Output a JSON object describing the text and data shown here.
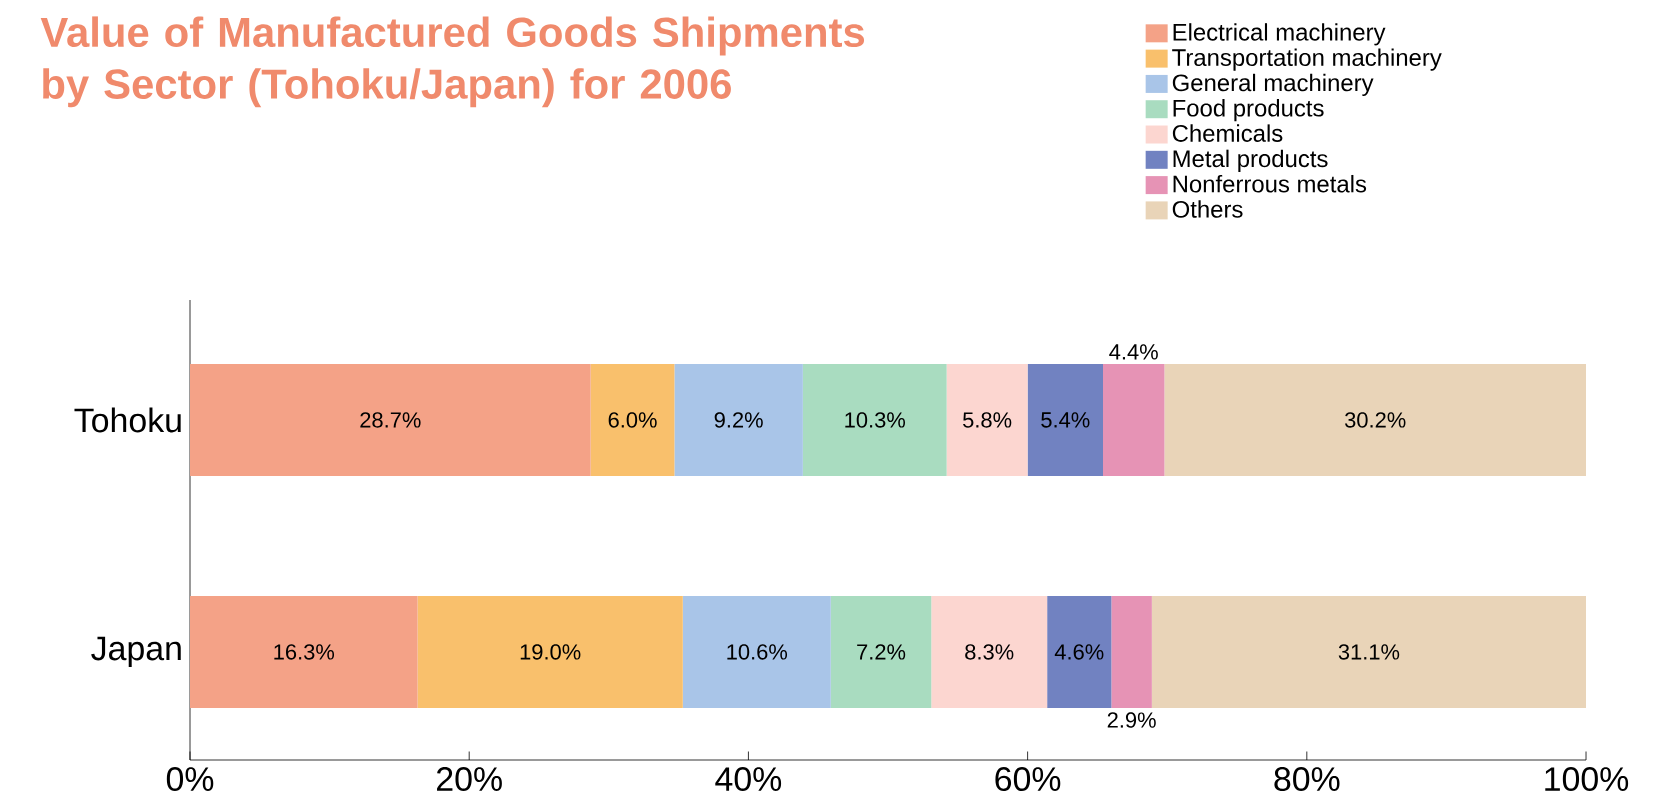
{
  "chart_data": {
    "type": "bar",
    "orientation": "horizontal",
    "stacked": true,
    "title": "Value of Manufactured Goods Shipments by Sector (Tohoku/Japan) for 2006",
    "categories": [
      "Tohoku",
      "Japan"
    ],
    "series": [
      {
        "name": "Electrical machinery",
        "color": "#f4a287",
        "values": [
          28.7,
          16.3
        ],
        "value_labels": [
          "28.7%",
          "16.3%"
        ]
      },
      {
        "name": "Transportation machinery",
        "color": "#f9c06c",
        "values": [
          6.0,
          19.0
        ],
        "value_labels": [
          "6.0%",
          "19.0%"
        ]
      },
      {
        "name": "General machinery",
        "color": "#a9c5e8",
        "values": [
          9.2,
          10.6
        ],
        "value_labels": [
          "9.2%",
          "10.6%"
        ]
      },
      {
        "name": "Food products",
        "color": "#a9dcc0",
        "values": [
          10.3,
          7.2
        ],
        "value_labels": [
          "10.3%",
          "7.2%"
        ]
      },
      {
        "name": "Chemicals",
        "color": "#fcd6d0",
        "values": [
          5.8,
          8.3
        ],
        "value_labels": [
          "5.8%",
          "8.3%"
        ]
      },
      {
        "name": "Metal products",
        "color": "#7182c1",
        "values": [
          5.4,
          4.6
        ],
        "value_labels": [
          "5.4%",
          "4.6%"
        ]
      },
      {
        "name": "Nonferrous metals",
        "color": "#e693b5",
        "values": [
          4.4,
          2.9
        ],
        "value_labels": [
          "4.4%",
          "2.9%"
        ]
      },
      {
        "name": "Others",
        "color": "#e9d4b8",
        "values": [
          30.2,
          31.1
        ],
        "value_labels": [
          "30.2%",
          "31.1%"
        ]
      }
    ],
    "xlim": [
      0,
      100
    ],
    "xticks": [
      {
        "value": 0,
        "label": "0%"
      },
      {
        "value": 20,
        "label": "20%"
      },
      {
        "value": 40,
        "label": "40%"
      },
      {
        "value": 60,
        "label": "60%"
      },
      {
        "value": 80,
        "label": "80%"
      },
      {
        "value": 100,
        "label": "100%"
      }
    ],
    "legend": "top right",
    "grid": false
  }
}
